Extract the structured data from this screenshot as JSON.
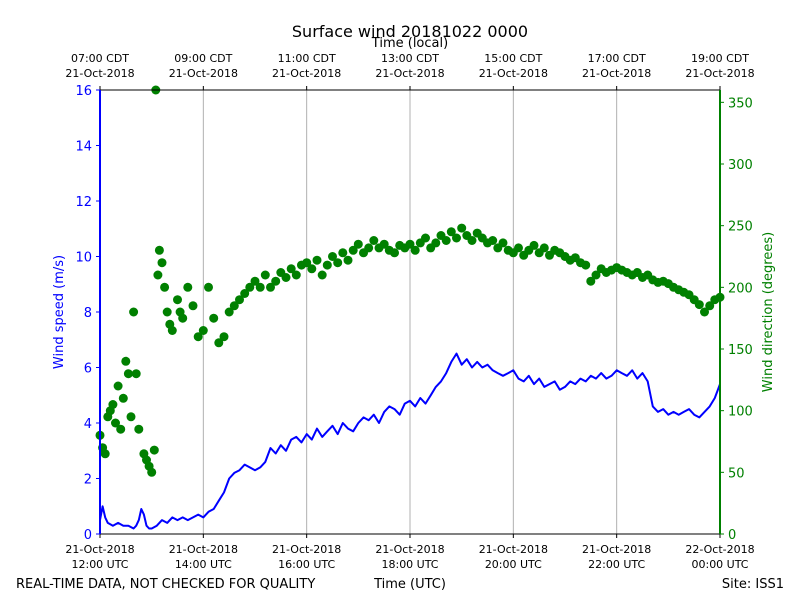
{
  "chart_data": {
    "type": "line+scatter",
    "title": "Surface wind 20181022 0000",
    "top_axis_label": "Time (local)",
    "xlabel": "Time (UTC)",
    "ylabel_left": "Wind speed (m/s)",
    "ylabel_right": "Wind direction (degrees)",
    "footer_left": "REAL-TIME DATA, NOT CHECKED FOR QUALITY",
    "footer_right": "Site: ISS1",
    "x_range_hours": [
      0,
      12
    ],
    "ylim_left": [
      0,
      16
    ],
    "ylim_right": [
      0,
      360
    ],
    "yticks_left": [
      0,
      2,
      4,
      6,
      8,
      10,
      12,
      14,
      16
    ],
    "yticks_right": [
      0,
      50,
      100,
      150,
      200,
      250,
      300,
      350
    ],
    "xticks_bottom": [
      {
        "h": 0,
        "line1": "21-Oct-2018",
        "line2": "12:00 UTC"
      },
      {
        "h": 2,
        "line1": "21-Oct-2018",
        "line2": "14:00 UTC"
      },
      {
        "h": 4,
        "line1": "21-Oct-2018",
        "line2": "16:00 UTC"
      },
      {
        "h": 6,
        "line1": "21-Oct-2018",
        "line2": "18:00 UTC"
      },
      {
        "h": 8,
        "line1": "21-Oct-2018",
        "line2": "20:00 UTC"
      },
      {
        "h": 10,
        "line1": "21-Oct-2018",
        "line2": "22:00 UTC"
      },
      {
        "h": 12,
        "line1": "22-Oct-2018",
        "line2": "00:00 UTC"
      }
    ],
    "xticks_top": [
      {
        "h": 0,
        "line1": "07:00 CDT",
        "line2": "21-Oct-2018"
      },
      {
        "h": 2,
        "line1": "09:00 CDT",
        "line2": "21-Oct-2018"
      },
      {
        "h": 4,
        "line1": "11:00 CDT",
        "line2": "21-Oct-2018"
      },
      {
        "h": 6,
        "line1": "13:00 CDT",
        "line2": "21-Oct-2018"
      },
      {
        "h": 8,
        "line1": "15:00 CDT",
        "line2": "21-Oct-2018"
      },
      {
        "h": 10,
        "line1": "17:00 CDT",
        "line2": "21-Oct-2018"
      },
      {
        "h": 12,
        "line1": "19:00 CDT",
        "line2": "21-Oct-2018"
      }
    ],
    "series": [
      {
        "name": "Wind speed",
        "axis": "left",
        "style": "line",
        "color": "#0000ff",
        "points": [
          [
            0.0,
            0.5
          ],
          [
            0.05,
            1.0
          ],
          [
            0.1,
            0.6
          ],
          [
            0.15,
            0.4
          ],
          [
            0.25,
            0.3
          ],
          [
            0.35,
            0.4
          ],
          [
            0.45,
            0.3
          ],
          [
            0.55,
            0.3
          ],
          [
            0.65,
            0.2
          ],
          [
            0.7,
            0.3
          ],
          [
            0.75,
            0.5
          ],
          [
            0.8,
            0.9
          ],
          [
            0.85,
            0.7
          ],
          [
            0.9,
            0.3
          ],
          [
            0.95,
            0.2
          ],
          [
            1.0,
            0.2
          ],
          [
            1.1,
            0.3
          ],
          [
            1.2,
            0.5
          ],
          [
            1.3,
            0.4
          ],
          [
            1.4,
            0.6
          ],
          [
            1.5,
            0.5
          ],
          [
            1.6,
            0.6
          ],
          [
            1.7,
            0.5
          ],
          [
            1.8,
            0.6
          ],
          [
            1.9,
            0.7
          ],
          [
            2.0,
            0.6
          ],
          [
            2.1,
            0.8
          ],
          [
            2.2,
            0.9
          ],
          [
            2.3,
            1.2
          ],
          [
            2.4,
            1.5
          ],
          [
            2.5,
            2.0
          ],
          [
            2.6,
            2.2
          ],
          [
            2.7,
            2.3
          ],
          [
            2.8,
            2.5
          ],
          [
            2.9,
            2.4
          ],
          [
            3.0,
            2.3
          ],
          [
            3.1,
            2.4
          ],
          [
            3.2,
            2.6
          ],
          [
            3.3,
            3.1
          ],
          [
            3.4,
            2.9
          ],
          [
            3.5,
            3.2
          ],
          [
            3.6,
            3.0
          ],
          [
            3.7,
            3.4
          ],
          [
            3.8,
            3.5
          ],
          [
            3.9,
            3.3
          ],
          [
            4.0,
            3.6
          ],
          [
            4.1,
            3.4
          ],
          [
            4.2,
            3.8
          ],
          [
            4.3,
            3.5
          ],
          [
            4.4,
            3.7
          ],
          [
            4.5,
            3.9
          ],
          [
            4.6,
            3.6
          ],
          [
            4.7,
            4.0
          ],
          [
            4.8,
            3.8
          ],
          [
            4.9,
            3.7
          ],
          [
            5.0,
            4.0
          ],
          [
            5.1,
            4.2
          ],
          [
            5.2,
            4.1
          ],
          [
            5.3,
            4.3
          ],
          [
            5.4,
            4.0
          ],
          [
            5.5,
            4.4
          ],
          [
            5.6,
            4.6
          ],
          [
            5.7,
            4.5
          ],
          [
            5.8,
            4.3
          ],
          [
            5.9,
            4.7
          ],
          [
            6.0,
            4.8
          ],
          [
            6.1,
            4.6
          ],
          [
            6.2,
            4.9
          ],
          [
            6.3,
            4.7
          ],
          [
            6.4,
            5.0
          ],
          [
            6.5,
            5.3
          ],
          [
            6.6,
            5.5
          ],
          [
            6.7,
            5.8
          ],
          [
            6.8,
            6.2
          ],
          [
            6.9,
            6.5
          ],
          [
            7.0,
            6.1
          ],
          [
            7.1,
            6.3
          ],
          [
            7.2,
            6.0
          ],
          [
            7.3,
            6.2
          ],
          [
            7.4,
            6.0
          ],
          [
            7.5,
            6.1
          ],
          [
            7.6,
            5.9
          ],
          [
            7.7,
            5.8
          ],
          [
            7.8,
            5.7
          ],
          [
            7.9,
            5.8
          ],
          [
            8.0,
            5.9
          ],
          [
            8.1,
            5.6
          ],
          [
            8.2,
            5.5
          ],
          [
            8.3,
            5.7
          ],
          [
            8.4,
            5.4
          ],
          [
            8.5,
            5.6
          ],
          [
            8.6,
            5.3
          ],
          [
            8.7,
            5.4
          ],
          [
            8.8,
            5.5
          ],
          [
            8.9,
            5.2
          ],
          [
            9.0,
            5.3
          ],
          [
            9.1,
            5.5
          ],
          [
            9.2,
            5.4
          ],
          [
            9.3,
            5.6
          ],
          [
            9.4,
            5.5
          ],
          [
            9.5,
            5.7
          ],
          [
            9.6,
            5.6
          ],
          [
            9.7,
            5.8
          ],
          [
            9.8,
            5.6
          ],
          [
            9.9,
            5.7
          ],
          [
            10.0,
            5.9
          ],
          [
            10.1,
            5.8
          ],
          [
            10.2,
            5.7
          ],
          [
            10.3,
            5.9
          ],
          [
            10.4,
            5.6
          ],
          [
            10.5,
            5.8
          ],
          [
            10.6,
            5.5
          ],
          [
            10.7,
            4.6
          ],
          [
            10.8,
            4.4
          ],
          [
            10.9,
            4.5
          ],
          [
            11.0,
            4.3
          ],
          [
            11.1,
            4.4
          ],
          [
            11.2,
            4.3
          ],
          [
            11.3,
            4.4
          ],
          [
            11.4,
            4.5
          ],
          [
            11.5,
            4.3
          ],
          [
            11.6,
            4.2
          ],
          [
            11.7,
            4.4
          ],
          [
            11.8,
            4.6
          ],
          [
            11.9,
            4.9
          ],
          [
            12.0,
            5.4
          ]
        ]
      },
      {
        "name": "Wind direction",
        "axis": "right",
        "style": "scatter",
        "color": "#008000",
        "points": [
          [
            0.0,
            80
          ],
          [
            0.05,
            70
          ],
          [
            0.1,
            65
          ],
          [
            0.15,
            95
          ],
          [
            0.2,
            100
          ],
          [
            0.25,
            105
          ],
          [
            0.3,
            90
          ],
          [
            0.35,
            120
          ],
          [
            0.4,
            85
          ],
          [
            0.45,
            110
          ],
          [
            0.5,
            140
          ],
          [
            0.55,
            130
          ],
          [
            0.6,
            95
          ],
          [
            0.65,
            180
          ],
          [
            0.7,
            130
          ],
          [
            0.75,
            85
          ],
          [
            0.85,
            65
          ],
          [
            0.9,
            60
          ],
          [
            0.95,
            55
          ],
          [
            1.0,
            50
          ],
          [
            1.05,
            68
          ],
          [
            1.08,
            360
          ],
          [
            1.12,
            210
          ],
          [
            1.15,
            230
          ],
          [
            1.2,
            220
          ],
          [
            1.25,
            200
          ],
          [
            1.3,
            180
          ],
          [
            1.35,
            170
          ],
          [
            1.4,
            165
          ],
          [
            1.5,
            190
          ],
          [
            1.55,
            180
          ],
          [
            1.6,
            175
          ],
          [
            1.7,
            200
          ],
          [
            1.8,
            185
          ],
          [
            1.9,
            160
          ],
          [
            2.0,
            165
          ],
          [
            2.1,
            200
          ],
          [
            2.2,
            175
          ],
          [
            2.3,
            155
          ],
          [
            2.4,
            160
          ],
          [
            2.5,
            180
          ],
          [
            2.6,
            185
          ],
          [
            2.7,
            190
          ],
          [
            2.8,
            195
          ],
          [
            2.9,
            200
          ],
          [
            3.0,
            205
          ],
          [
            3.1,
            200
          ],
          [
            3.2,
            210
          ],
          [
            3.3,
            200
          ],
          [
            3.4,
            205
          ],
          [
            3.5,
            212
          ],
          [
            3.6,
            208
          ],
          [
            3.7,
            215
          ],
          [
            3.8,
            210
          ],
          [
            3.9,
            218
          ],
          [
            4.0,
            220
          ],
          [
            4.1,
            215
          ],
          [
            4.2,
            222
          ],
          [
            4.3,
            210
          ],
          [
            4.4,
            218
          ],
          [
            4.5,
            225
          ],
          [
            4.6,
            220
          ],
          [
            4.7,
            228
          ],
          [
            4.8,
            222
          ],
          [
            4.9,
            230
          ],
          [
            5.0,
            235
          ],
          [
            5.1,
            228
          ],
          [
            5.2,
            232
          ],
          [
            5.3,
            238
          ],
          [
            5.4,
            232
          ],
          [
            5.5,
            235
          ],
          [
            5.6,
            230
          ],
          [
            5.7,
            228
          ],
          [
            5.8,
            234
          ],
          [
            5.9,
            232
          ],
          [
            6.0,
            235
          ],
          [
            6.1,
            230
          ],
          [
            6.2,
            236
          ],
          [
            6.3,
            240
          ],
          [
            6.4,
            232
          ],
          [
            6.5,
            236
          ],
          [
            6.6,
            242
          ],
          [
            6.7,
            238
          ],
          [
            6.8,
            245
          ],
          [
            6.9,
            240
          ],
          [
            7.0,
            248
          ],
          [
            7.1,
            242
          ],
          [
            7.2,
            238
          ],
          [
            7.3,
            244
          ],
          [
            7.4,
            240
          ],
          [
            7.5,
            236
          ],
          [
            7.6,
            238
          ],
          [
            7.7,
            232
          ],
          [
            7.8,
            236
          ],
          [
            7.9,
            230
          ],
          [
            8.0,
            228
          ],
          [
            8.1,
            232
          ],
          [
            8.2,
            226
          ],
          [
            8.3,
            230
          ],
          [
            8.4,
            234
          ],
          [
            8.5,
            228
          ],
          [
            8.6,
            232
          ],
          [
            8.7,
            226
          ],
          [
            8.8,
            230
          ],
          [
            8.9,
            228
          ],
          [
            9.0,
            225
          ],
          [
            9.1,
            222
          ],
          [
            9.2,
            224
          ],
          [
            9.3,
            220
          ],
          [
            9.4,
            218
          ],
          [
            9.5,
            205
          ],
          [
            9.6,
            210
          ],
          [
            9.7,
            215
          ],
          [
            9.8,
            212
          ],
          [
            9.9,
            214
          ],
          [
            10.0,
            216
          ],
          [
            10.1,
            214
          ],
          [
            10.2,
            212
          ],
          [
            10.3,
            210
          ],
          [
            10.4,
            212
          ],
          [
            10.5,
            208
          ],
          [
            10.6,
            210
          ],
          [
            10.7,
            206
          ],
          [
            10.8,
            204
          ],
          [
            10.9,
            205
          ],
          [
            11.0,
            203
          ],
          [
            11.1,
            200
          ],
          [
            11.2,
            198
          ],
          [
            11.3,
            196
          ],
          [
            11.4,
            194
          ],
          [
            11.5,
            190
          ],
          [
            11.6,
            186
          ],
          [
            11.7,
            180
          ],
          [
            11.8,
            185
          ],
          [
            11.9,
            190
          ],
          [
            12.0,
            192
          ]
        ]
      }
    ]
  }
}
